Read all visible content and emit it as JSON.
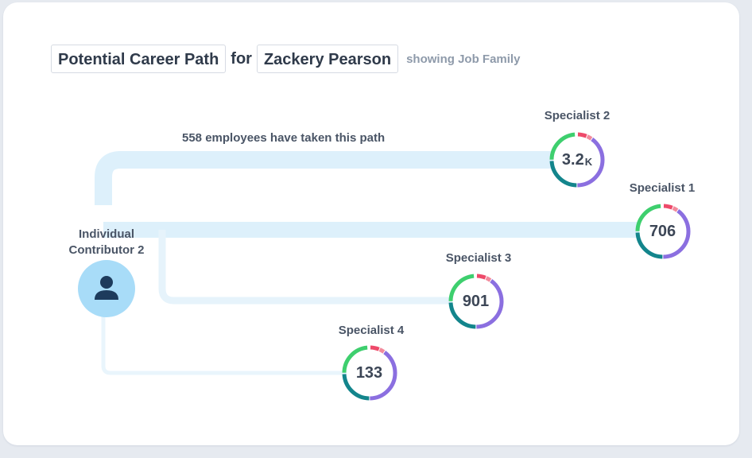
{
  "header": {
    "title": "Potential Career Path",
    "connector": "for",
    "employee": "Zackery Pearson",
    "mode": "showing Job Family"
  },
  "path_caption": "558 employees have taken this path",
  "origin": {
    "label_line1": "Individual",
    "label_line2": "Contributor 2",
    "icon": "person-icon"
  },
  "nodes": [
    {
      "id": "specialist-2",
      "label": "Specialist 2",
      "count": "3.2",
      "suffix": "K"
    },
    {
      "id": "specialist-1",
      "label": "Specialist 1",
      "count": "706",
      "suffix": ""
    },
    {
      "id": "specialist-3",
      "label": "Specialist 3",
      "count": "901",
      "suffix": ""
    },
    {
      "id": "specialist-4",
      "label": "Specialist 4",
      "count": "133",
      "suffix": ""
    }
  ],
  "colors": {
    "ring_green": "#3ecf6e",
    "ring_red": "#ee4a6a",
    "ring_pink": "#f28a9c",
    "ring_purple": "#8b6fe0",
    "ring_teal": "#13858c",
    "path_strong": "#ddf0fb",
    "path_light": "#e9f5fc",
    "avatar_bg": "#a8dcf8",
    "avatar_fg": "#1d3b5c"
  }
}
